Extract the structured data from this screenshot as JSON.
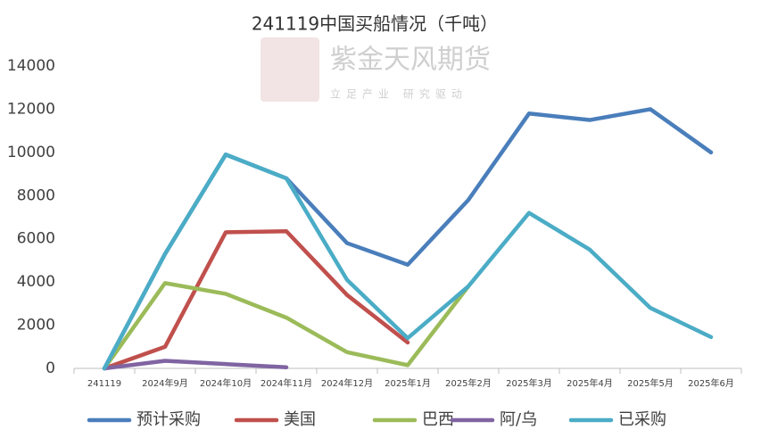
{
  "chart_data": {
    "type": "line",
    "title": "241119中国买船情况（千吨）",
    "watermark": "紫金天风期货",
    "watermark_slogan": "立足产业 研究驱动",
    "categories": [
      "241119",
      "2024年9月",
      "2024年10月",
      "2024年11月",
      "2024年12月",
      "2025年1月",
      "2025年2月",
      "2025年3月",
      "2025年4月",
      "2025年5月",
      "2025年6月"
    ],
    "series": [
      {
        "name": "预计采购",
        "color": "#4a7ebb",
        "values": [
          0,
          5300,
          9900,
          8800,
          5800,
          4800,
          7800,
          11800,
          11500,
          12000,
          10000
        ]
      },
      {
        "name": "美国",
        "color": "#c0504d",
        "values": [
          0,
          1000,
          6300,
          6350,
          3400,
          1200,
          null,
          null,
          null,
          null,
          null
        ]
      },
      {
        "name": "巴西",
        "color": "#9bbb59",
        "values": [
          0,
          3950,
          3450,
          2350,
          750,
          150,
          3800,
          null,
          null,
          null,
          null
        ]
      },
      {
        "name": "阿/乌",
        "color": "#8064a2",
        "values": [
          0,
          350,
          200,
          50,
          null,
          null,
          null,
          null,
          null,
          null,
          null
        ]
      },
      {
        "name": "已采购",
        "color": "#4bacc6",
        "values": [
          0,
          5300,
          9900,
          8800,
          4100,
          1400,
          3800,
          7200,
          5500,
          2800,
          1450
        ]
      }
    ],
    "ylim": [
      0,
      14000
    ],
    "yticks": [
      0,
      2000,
      4000,
      6000,
      8000,
      10000,
      12000,
      14000
    ],
    "grid": false,
    "legend": "bottom"
  }
}
